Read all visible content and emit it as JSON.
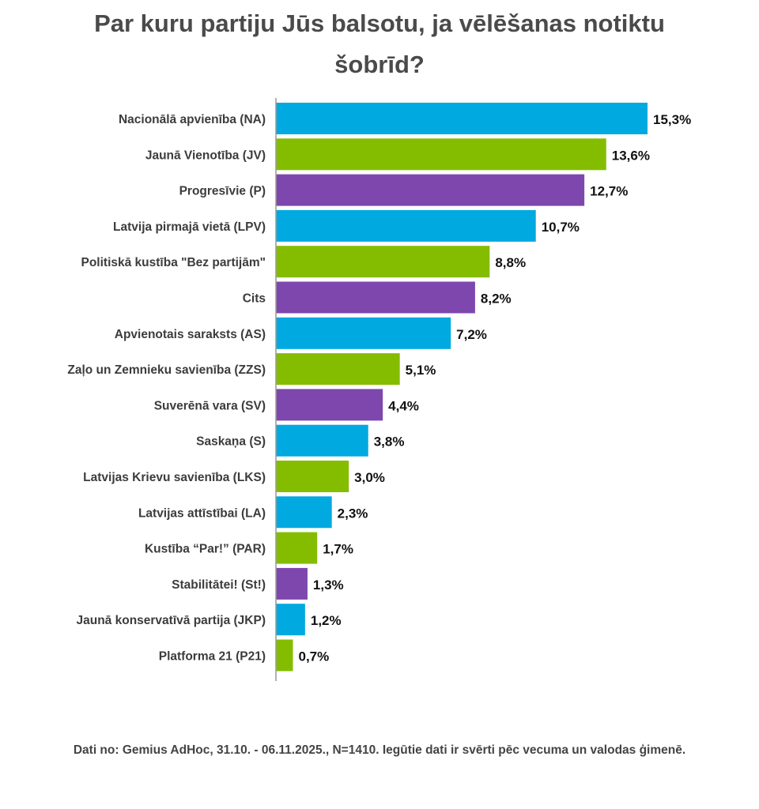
{
  "chart_data": {
    "type": "bar",
    "orientation": "horizontal",
    "title": "Par kuru partiju Jūs balsotu, ja vēlēšanas notiktu šobrīd?",
    "categories": [
      "Nacionālā apvienība (NA)",
      "Jaunā Vienotība (JV)",
      "Progresīvie (P)",
      "Latvija pirmajā vietā (LPV)",
      "Politiskā kustība \"Bez partijām\"",
      "Cits",
      "Apvienotais saraksts (AS)",
      "Zaļo un Zemnieku savienība (ZZS)",
      "Suverēnā vara (SV)",
      "Saskaņa (S)",
      "Latvijas Krievu savienība (LKS)",
      "Latvijas attīstībai (LA)",
      "Kustība “Par!” (PAR)",
      "Stabilitātei! (St!)",
      "Jaunā konservatīvā partija (JKP)",
      "Platforma 21 (P21)"
    ],
    "values": [
      15.3,
      13.6,
      12.7,
      10.7,
      8.8,
      8.2,
      7.2,
      5.1,
      4.4,
      3.8,
      3.0,
      2.3,
      1.7,
      1.3,
      1.2,
      0.7
    ],
    "value_labels": [
      "15,3%",
      "13,6%",
      "12,7%",
      "10,7%",
      "8,8%",
      "8,2%",
      "7,2%",
      "5,1%",
      "4,4%",
      "3,8%",
      "3,0%",
      "2,3%",
      "1,7%",
      "1,3%",
      "1,2%",
      "0,7%"
    ],
    "colors": [
      "#00a9e0",
      "#84bd00",
      "#7d47ad",
      "#00a9e0",
      "#84bd00",
      "#7d47ad",
      "#00a9e0",
      "#84bd00",
      "#7d47ad",
      "#00a9e0",
      "#84bd00",
      "#00a9e0",
      "#84bd00",
      "#7d47ad",
      "#00a9e0",
      "#84bd00"
    ],
    "xlim": [
      0,
      15.3
    ],
    "grid": false,
    "legend": "none"
  },
  "footnote": "Dati no: Gemius AdHoc, 31.10. - 06.11.2025., N=1410. Iegūtie dati ir svērti pēc vecuma un valodas ģimenē."
}
